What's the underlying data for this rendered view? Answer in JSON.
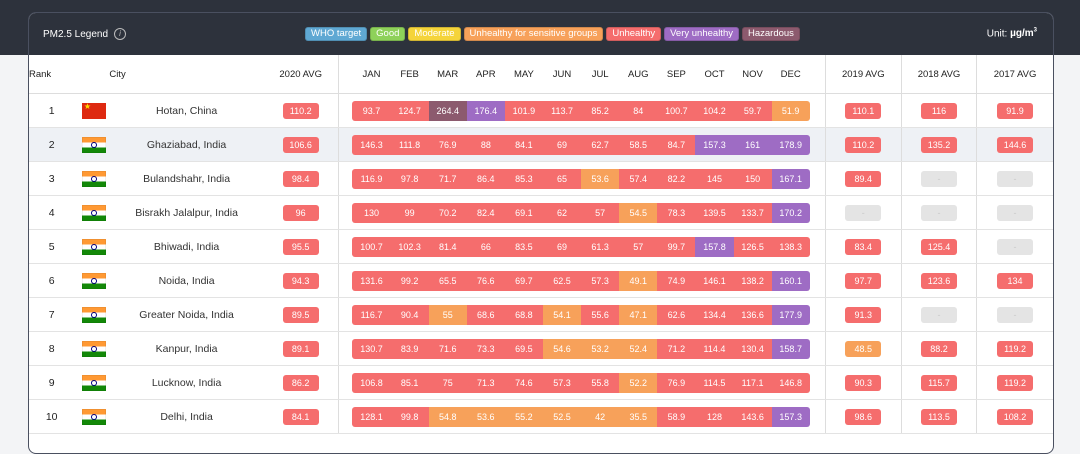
{
  "legend": {
    "title": "PM2.5 Legend",
    "info_icon": "info-icon",
    "unit_prefix": "Unit: ",
    "unit_value": "µg/m",
    "unit_sup": "3",
    "items": [
      {
        "label": "WHO target",
        "color": "#5fa8d3"
      },
      {
        "label": "Good",
        "color": "#8ed15a"
      },
      {
        "label": "Moderate",
        "color": "#f5d43a"
      },
      {
        "label": "Unhealthy for sensitive groups",
        "color": "#f7a15a"
      },
      {
        "label": "Unhealthy",
        "color": "#f56d6d"
      },
      {
        "label": "Very unhealthy",
        "color": "#9e6cc4"
      },
      {
        "label": "Hazardous",
        "color": "#8c5a6e"
      }
    ]
  },
  "columns": {
    "rank": "Rank",
    "city": "City",
    "avg2020": "2020 AVG",
    "months": [
      "JAN",
      "FEB",
      "MAR",
      "APR",
      "MAY",
      "JUN",
      "JUL",
      "AUG",
      "SEP",
      "OCT",
      "NOV",
      "DEC"
    ],
    "avg2019": "2019 AVG",
    "avg2018": "2018 AVG",
    "avg2017": "2017 AVG"
  },
  "colors": {
    "unhealthy": "#f56d6d",
    "sensitive": "#f7a15a",
    "very_unhealthy": "#9e6cc4",
    "hazardous": "#8c5a6e",
    "na": "#e4e4e4"
  },
  "rows": [
    {
      "rank": "1",
      "city": "Hotan, China",
      "flag": "cn",
      "avg2020": "110.2",
      "months": [
        "93.7",
        "124.7",
        "264.4",
        "176.4",
        "101.9",
        "113.7",
        "85.2",
        "84",
        "100.7",
        "104.2",
        "59.7",
        "51.9"
      ],
      "levels": [
        "unhealthy",
        "unhealthy",
        "hazardous",
        "very_unhealthy",
        "unhealthy",
        "unhealthy",
        "unhealthy",
        "unhealthy",
        "unhealthy",
        "unhealthy",
        "unhealthy",
        "sensitive"
      ],
      "avg2019": "110.1",
      "avg2018": "116",
      "avg2017": "91.9"
    },
    {
      "rank": "2",
      "city": "Ghaziabad, India",
      "flag": "in",
      "avg2020": "106.6",
      "months": [
        "146.3",
        "111.8",
        "76.9",
        "88",
        "84.1",
        "69",
        "62.7",
        "58.5",
        "84.7",
        "157.3",
        "161",
        "178.9"
      ],
      "levels": [
        "unhealthy",
        "unhealthy",
        "unhealthy",
        "unhealthy",
        "unhealthy",
        "unhealthy",
        "unhealthy",
        "unhealthy",
        "unhealthy",
        "very_unhealthy",
        "very_unhealthy",
        "very_unhealthy"
      ],
      "avg2019": "110.2",
      "avg2018": "135.2",
      "avg2017": "144.6"
    },
    {
      "rank": "3",
      "city": "Bulandshahr, India",
      "flag": "in",
      "avg2020": "98.4",
      "months": [
        "116.9",
        "97.8",
        "71.7",
        "86.4",
        "85.3",
        "65",
        "53.6",
        "57.4",
        "82.2",
        "145",
        "150",
        "167.1"
      ],
      "levels": [
        "unhealthy",
        "unhealthy",
        "unhealthy",
        "unhealthy",
        "unhealthy",
        "unhealthy",
        "sensitive",
        "unhealthy",
        "unhealthy",
        "unhealthy",
        "unhealthy",
        "very_unhealthy"
      ],
      "avg2019": "89.4",
      "avg2018": "-",
      "avg2017": "-"
    },
    {
      "rank": "4",
      "city": "Bisrakh Jalalpur, India",
      "flag": "in",
      "avg2020": "96",
      "months": [
        "130",
        "99",
        "70.2",
        "82.4",
        "69.1",
        "62",
        "57",
        "54.5",
        "78.3",
        "139.5",
        "133.7",
        "170.2"
      ],
      "levels": [
        "unhealthy",
        "unhealthy",
        "unhealthy",
        "unhealthy",
        "unhealthy",
        "unhealthy",
        "unhealthy",
        "sensitive",
        "unhealthy",
        "unhealthy",
        "unhealthy",
        "very_unhealthy"
      ],
      "avg2019": "-",
      "avg2018": "-",
      "avg2017": "-"
    },
    {
      "rank": "5",
      "city": "Bhiwadi, India",
      "flag": "in",
      "avg2020": "95.5",
      "months": [
        "100.7",
        "102.3",
        "81.4",
        "66",
        "83.5",
        "69",
        "61.3",
        "57",
        "99.7",
        "157.8",
        "126.5",
        "138.3"
      ],
      "levels": [
        "unhealthy",
        "unhealthy",
        "unhealthy",
        "unhealthy",
        "unhealthy",
        "unhealthy",
        "unhealthy",
        "unhealthy",
        "unhealthy",
        "very_unhealthy",
        "unhealthy",
        "unhealthy"
      ],
      "avg2019": "83.4",
      "avg2018": "125.4",
      "avg2017": "-"
    },
    {
      "rank": "6",
      "city": "Noida, India",
      "flag": "in",
      "avg2020": "94.3",
      "months": [
        "131.6",
        "99.2",
        "65.5",
        "76.6",
        "69.7",
        "62.5",
        "57.3",
        "49.1",
        "74.9",
        "146.1",
        "138.2",
        "160.1"
      ],
      "levels": [
        "unhealthy",
        "unhealthy",
        "unhealthy",
        "unhealthy",
        "unhealthy",
        "unhealthy",
        "unhealthy",
        "sensitive",
        "unhealthy",
        "unhealthy",
        "unhealthy",
        "very_unhealthy"
      ],
      "avg2019": "97.7",
      "avg2018": "123.6",
      "avg2017": "134"
    },
    {
      "rank": "7",
      "city": "Greater Noida, India",
      "flag": "in",
      "avg2020": "89.5",
      "months": [
        "116.7",
        "90.4",
        "55",
        "68.6",
        "68.8",
        "54.1",
        "55.6",
        "47.1",
        "62.6",
        "134.4",
        "136.6",
        "177.9"
      ],
      "levels": [
        "unhealthy",
        "unhealthy",
        "sensitive",
        "unhealthy",
        "unhealthy",
        "sensitive",
        "unhealthy",
        "sensitive",
        "unhealthy",
        "unhealthy",
        "unhealthy",
        "very_unhealthy"
      ],
      "avg2019": "91.3",
      "avg2018": "-",
      "avg2017": "-"
    },
    {
      "rank": "8",
      "city": "Kanpur, India",
      "flag": "in",
      "avg2020": "89.1",
      "months": [
        "130.7",
        "83.9",
        "71.6",
        "73.3",
        "69.5",
        "54.6",
        "53.2",
        "52.4",
        "71.2",
        "114.4",
        "130.4",
        "158.7"
      ],
      "levels": [
        "unhealthy",
        "unhealthy",
        "unhealthy",
        "unhealthy",
        "unhealthy",
        "sensitive",
        "sensitive",
        "sensitive",
        "unhealthy",
        "unhealthy",
        "unhealthy",
        "very_unhealthy"
      ],
      "avg2019": "48.5",
      "avg2019_level": "sensitive",
      "avg2018": "88.2",
      "avg2017": "119.2"
    },
    {
      "rank": "9",
      "city": "Lucknow, India",
      "flag": "in",
      "avg2020": "86.2",
      "months": [
        "106.8",
        "85.1",
        "75",
        "71.3",
        "74.6",
        "57.3",
        "55.8",
        "52.2",
        "76.9",
        "114.5",
        "117.1",
        "146.8"
      ],
      "levels": [
        "unhealthy",
        "unhealthy",
        "unhealthy",
        "unhealthy",
        "unhealthy",
        "unhealthy",
        "unhealthy",
        "sensitive",
        "unhealthy",
        "unhealthy",
        "unhealthy",
        "unhealthy"
      ],
      "avg2019": "90.3",
      "avg2018": "115.7",
      "avg2017": "119.2"
    },
    {
      "rank": "10",
      "city": "Delhi, India",
      "flag": "in",
      "avg2020": "84.1",
      "months": [
        "128.1",
        "99.8",
        "54.8",
        "53.6",
        "55.2",
        "52.5",
        "42",
        "35.5",
        "58.9",
        "128",
        "143.6",
        "157.3"
      ],
      "levels": [
        "unhealthy",
        "unhealthy",
        "sensitive",
        "sensitive",
        "sensitive",
        "sensitive",
        "sensitive",
        "sensitive",
        "unhealthy",
        "unhealthy",
        "unhealthy",
        "very_unhealthy"
      ],
      "avg2019": "98.6",
      "avg2018": "113.5",
      "avg2017": "108.2"
    }
  ]
}
